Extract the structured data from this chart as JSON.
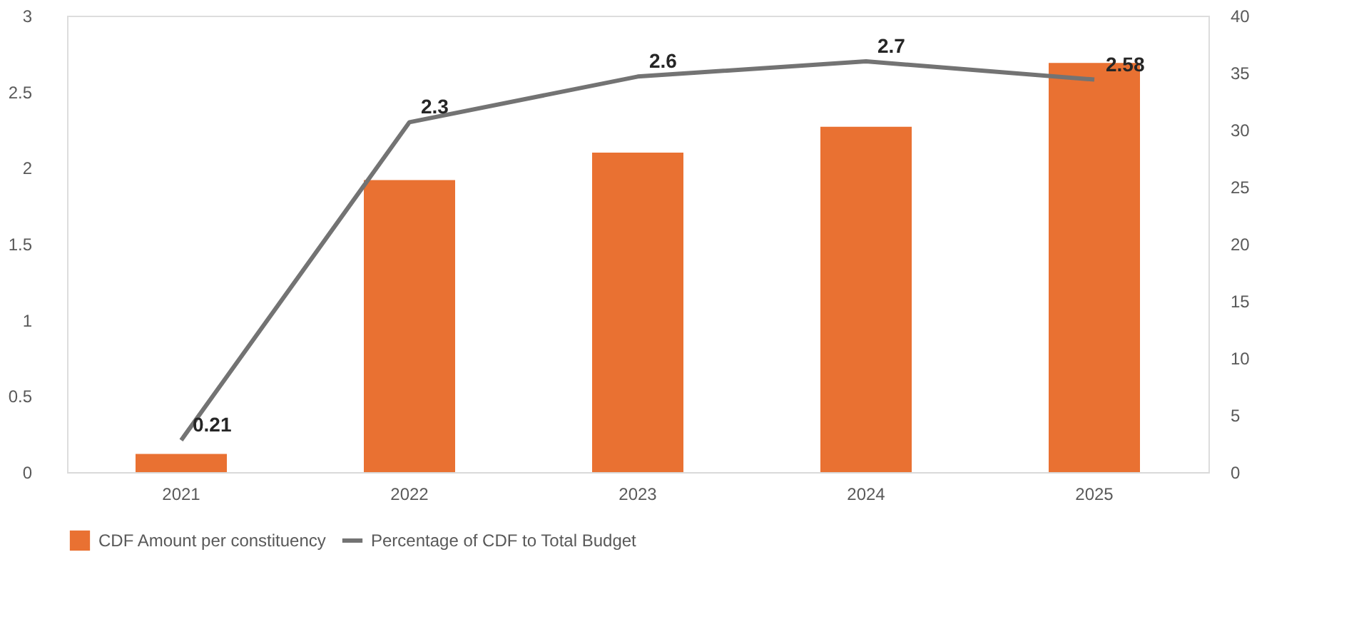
{
  "chart_data": {
    "type": "bar",
    "categories": [
      "2021",
      "2022",
      "2023",
      "2024",
      "2025"
    ],
    "ylim": [
      0,
      3
    ],
    "yticks": [
      0,
      0.5,
      1,
      1.5,
      2,
      2.5,
      3
    ],
    "y2lim": [
      0,
      40
    ],
    "y2ticks": [
      0,
      5,
      10,
      15,
      20,
      25,
      30,
      35,
      40
    ],
    "grid": false,
    "legend": "bottom",
    "series": [
      {
        "name": "CDF Amount per constituency",
        "color": "#e97132",
        "values": [
          0.12,
          1.92,
          2.1,
          2.27,
          2.69
        ]
      },
      {
        "name": "Percentage of CDF to Total Budget",
        "type": "line",
        "color": "#737373",
        "values": [
          0.21,
          2.3,
          2.6,
          2.7,
          2.58
        ],
        "data_labels": true
      }
    ]
  }
}
